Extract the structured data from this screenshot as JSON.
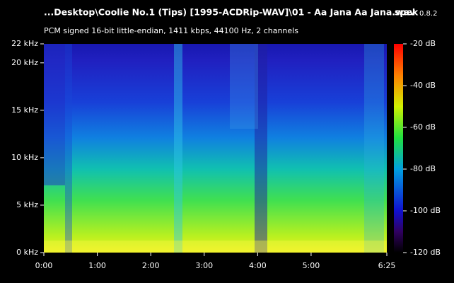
{
  "chart_data": {
    "type": "spectrogram",
    "title": "...Desktop\\Coolie No.1 (Tips) [1995-ACDRip-WAV]\\01 - Aa Jana Aa Jana.wav",
    "app_name": "spek",
    "app_version": "0.8.2",
    "subtitle": "PCM signed 16-bit little-endian, 1411 kbps, 44100 Hz, 2 channels",
    "xlim": [
      0,
      385
    ],
    "xticks": [
      {
        "value": 0,
        "label": "0:00"
      },
      {
        "value": 60,
        "label": "1:00"
      },
      {
        "value": 120,
        "label": "2:00"
      },
      {
        "value": 180,
        "label": "3:00"
      },
      {
        "value": 240,
        "label": "4:00"
      },
      {
        "value": 300,
        "label": "5:00"
      },
      {
        "value": 385,
        "label": "6:25"
      }
    ],
    "ylim": [
      0,
      22
    ],
    "yticks": [
      {
        "value": 0,
        "label": "0 kHz"
      },
      {
        "value": 5,
        "label": "5 kHz"
      },
      {
        "value": 10,
        "label": "10 kHz"
      },
      {
        "value": 15,
        "label": "15 kHz"
      },
      {
        "value": 20,
        "label": "20 kHz"
      },
      {
        "value": 22,
        "label": "22 kHz"
      }
    ],
    "colorbar_lim": [
      -120,
      -20
    ],
    "colorbar_ticks": [
      {
        "value": -20,
        "label": "-20 dB"
      },
      {
        "value": -40,
        "label": "-40 dB"
      },
      {
        "value": -60,
        "label": "-60 dB"
      },
      {
        "value": -80,
        "label": "-80 dB"
      },
      {
        "value": -100,
        "label": "-100 dB"
      },
      {
        "value": -120,
        "label": "-120 dB"
      }
    ]
  }
}
